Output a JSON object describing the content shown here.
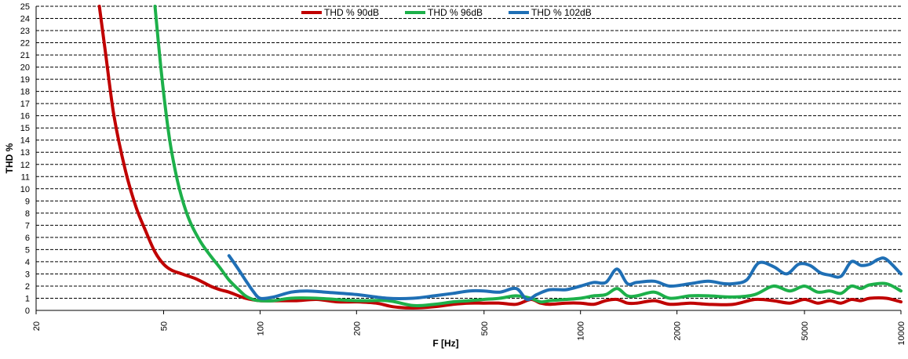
{
  "chart_data": {
    "type": "line",
    "title": "",
    "xlabel": "F [Hz]",
    "ylabel": "THD %",
    "xscale": "log",
    "xlim": [
      20,
      10000
    ],
    "ylim": [
      0,
      25
    ],
    "x_ticks": [
      20,
      50,
      100,
      200,
      500,
      1000,
      2000,
      5000,
      10000
    ],
    "x_tick_labels": [
      "20",
      "50",
      "100",
      "200",
      "500",
      "1000",
      "2000",
      "5000",
      "10000"
    ],
    "y_ticks": [
      0,
      1,
      2,
      3,
      4,
      5,
      6,
      7,
      8,
      9,
      10,
      11,
      12,
      13,
      14,
      15,
      16,
      17,
      18,
      19,
      20,
      21,
      22,
      23,
      24,
      25
    ],
    "y_tick_labels": [
      "0",
      "1",
      "2",
      "3",
      "4",
      "5",
      "6",
      "7",
      "8",
      "9",
      "10",
      "11",
      "12",
      "13",
      "14",
      "15",
      "16",
      "17",
      "18",
      "19",
      "20",
      "21",
      "22",
      "23",
      "24",
      "25"
    ],
    "grid": "horizontal, dashed",
    "legend_position": "top-center",
    "series": [
      {
        "name": "THD % 90dB",
        "color": "#C00000",
        "x": [
          31.5,
          33,
          35,
          38,
          41,
          44,
          47,
          50,
          53,
          57,
          63,
          70,
          75,
          80,
          90,
          100,
          115,
          130,
          150,
          175,
          200,
          230,
          260,
          300,
          350,
          400,
          450,
          500,
          560,
          630,
          700,
          750,
          800,
          900,
          1000,
          1100,
          1200,
          1300,
          1400,
          1500,
          1700,
          1900,
          2200,
          2500,
          3000,
          3500,
          4000,
          4500,
          5000,
          5500,
          6000,
          6500,
          7000,
          7500,
          8000,
          9000,
          10000
        ],
        "y": [
          25,
          21,
          16,
          11.5,
          8.5,
          6.5,
          4.8,
          3.8,
          3.3,
          3.0,
          2.6,
          2.0,
          1.7,
          1.5,
          1.0,
          0.8,
          0.8,
          0.8,
          0.9,
          0.7,
          0.7,
          0.6,
          0.3,
          0.2,
          0.3,
          0.5,
          0.6,
          0.6,
          0.6,
          0.5,
          0.9,
          0.6,
          0.5,
          0.6,
          0.6,
          0.5,
          0.8,
          0.9,
          0.6,
          0.6,
          0.8,
          0.5,
          0.6,
          0.5,
          0.5,
          0.9,
          0.8,
          0.6,
          0.9,
          0.6,
          0.8,
          0.6,
          0.9,
          0.8,
          1.0,
          1.0,
          0.7
        ]
      },
      {
        "name": "THD % 96dB",
        "color": "#1DB04A",
        "x": [
          47,
          49,
          51,
          53,
          56,
          60,
          65,
          70,
          75,
          80,
          85,
          90,
          95,
          100,
          110,
          125,
          150,
          200,
          250,
          300,
          350,
          400,
          450,
          500,
          560,
          630,
          700,
          750,
          800,
          900,
          1000,
          1100,
          1200,
          1300,
          1400,
          1500,
          1700,
          1900,
          2200,
          2500,
          3000,
          3500,
          4000,
          4500,
          5000,
          5500,
          6000,
          6500,
          7000,
          7500,
          8000,
          9000,
          10000
        ],
        "y": [
          25,
          20,
          16,
          13,
          10,
          7.5,
          5.7,
          4.5,
          3.5,
          2.5,
          1.8,
          1.2,
          0.9,
          0.8,
          0.8,
          1.0,
          1.0,
          0.8,
          0.8,
          0.4,
          0.5,
          0.7,
          0.8,
          0.9,
          1.0,
          1.2,
          1.0,
          0.7,
          0.8,
          0.9,
          1.0,
          1.2,
          1.3,
          1.8,
          1.2,
          1.2,
          1.5,
          1.0,
          1.2,
          1.2,
          1.1,
          1.3,
          2.0,
          1.6,
          2.0,
          1.5,
          1.6,
          1.4,
          2.0,
          1.8,
          2.1,
          2.2,
          1.6
        ]
      },
      {
        "name": "THD % 102dB",
        "color": "#1F6FB5",
        "x": [
          80,
          85,
          90,
          95,
          100,
          110,
          125,
          140,
          160,
          200,
          250,
          300,
          350,
          400,
          450,
          500,
          560,
          630,
          680,
          730,
          800,
          900,
          1000,
          1100,
          1200,
          1300,
          1400,
          1500,
          1700,
          1900,
          2200,
          2500,
          2800,
          3000,
          3300,
          3600,
          4000,
          4400,
          4800,
          5200,
          5600,
          6000,
          6500,
          7000,
          7500,
          8000,
          8500,
          9000,
          10000
        ],
        "y": [
          4.5,
          3.5,
          2.5,
          1.6,
          1.0,
          1.1,
          1.5,
          1.6,
          1.5,
          1.3,
          1.0,
          1.0,
          1.2,
          1.4,
          1.6,
          1.6,
          1.5,
          1.8,
          0.9,
          1.3,
          1.7,
          1.7,
          2.0,
          2.3,
          2.3,
          3.4,
          2.2,
          2.3,
          2.4,
          2.0,
          2.2,
          2.4,
          2.2,
          2.2,
          2.5,
          3.9,
          3.6,
          3.0,
          3.8,
          3.7,
          3.1,
          2.9,
          2.8,
          4.0,
          3.7,
          3.8,
          4.2,
          4.2,
          3.0
        ]
      }
    ]
  }
}
